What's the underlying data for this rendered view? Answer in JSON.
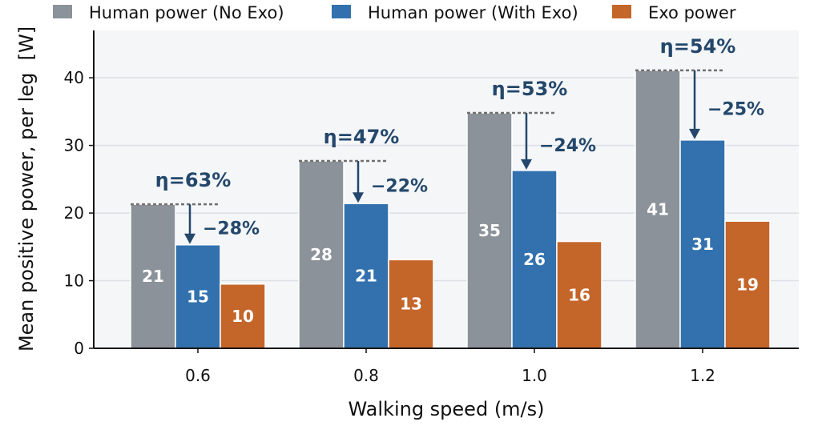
{
  "chart_data": {
    "type": "bar",
    "title": "",
    "xlabel": "Walking speed (m/s)",
    "ylabel": "Mean positive power, per leg  [W]",
    "categories": [
      "0.6",
      "0.8",
      "1.0",
      "1.2"
    ],
    "ylim": [
      0,
      47
    ],
    "yticks": [
      "0",
      "10",
      "20",
      "30",
      "40"
    ],
    "grid": "horizontal",
    "legend_position": "top",
    "series": [
      {
        "name": "Human power (No Exo)",
        "color": "#8c9299",
        "values": [
          21.3,
          27.7,
          34.8,
          41.1
        ],
        "labels": [
          "21",
          "28",
          "35",
          "41"
        ]
      },
      {
        "name": "Human power (With Exo)",
        "color": "#3271ad",
        "values": [
          15.3,
          21.4,
          26.3,
          30.8
        ],
        "labels": [
          "15",
          "21",
          "26",
          "31"
        ]
      },
      {
        "name": "Exo power",
        "color": "#c4652a",
        "values": [
          9.5,
          13.1,
          15.8,
          18.8
        ],
        "labels": [
          "10",
          "13",
          "16",
          "19"
        ]
      }
    ],
    "annotations": {
      "efficiency": [
        "η=63%",
        "η=47%",
        "η=53%",
        "η=54%"
      ],
      "reduction": [
        "−28%",
        "−22%",
        "−24%",
        "−25%"
      ]
    }
  }
}
